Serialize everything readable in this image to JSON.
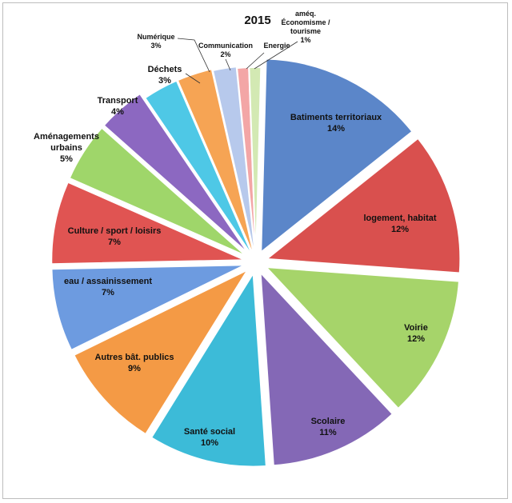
{
  "chart_data": {
    "type": "pie",
    "title": "2015",
    "slices": [
      {
        "label": "Batiments territoriaux",
        "value": 14,
        "pct": "14%",
        "color": "#5b86c9"
      },
      {
        "label": "logement, habitat",
        "value": 12,
        "pct": "12%",
        "color": "#d9504e"
      },
      {
        "label": "Voirie",
        "value": 12,
        "pct": "12%",
        "color": "#a6d46a"
      },
      {
        "label": "Scolaire",
        "value": 11,
        "pct": "11%",
        "color": "#8468b6"
      },
      {
        "label": "Santé social",
        "value": 10,
        "pct": "10%",
        "color": "#3cbbd8"
      },
      {
        "label": "Autres bât. publics",
        "value": 9,
        "pct": "9%",
        "color": "#f49a45"
      },
      {
        "label": "eau / assainissement",
        "value": 7,
        "pct": "7%",
        "color": "#6d9be0"
      },
      {
        "label": "Culture / sport / loisirs",
        "value": 7,
        "pct": "7%",
        "color": "#e05452"
      },
      {
        "label": "Aménagements urbains",
        "value": 5,
        "pct": "5%",
        "color": "#9fd66a"
      },
      {
        "label": "Transport",
        "value": 4,
        "pct": "4%",
        "color": "#8c68c1"
      },
      {
        "label": "Déchets",
        "value": 3,
        "pct": "3%",
        "color": "#4ec8e6"
      },
      {
        "label": "Numérique",
        "value": 3,
        "pct": "3%",
        "color": "#f6a454"
      },
      {
        "label": "Communication",
        "value": 2,
        "pct": "2%",
        "color": "#b7c9ec"
      },
      {
        "label": "Energie",
        "value": 1,
        "pct": "",
        "color": "#f3a6a6"
      },
      {
        "label": "amég. Économisme / tourisme",
        "value": 1,
        "pct": "1%",
        "color": "#d3e9b3"
      }
    ]
  }
}
